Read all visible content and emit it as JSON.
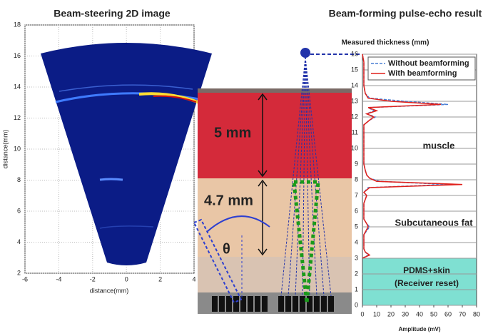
{
  "chart_data": [
    {
      "type": "sector-image",
      "title": "Beam-steering 2D image",
      "x_label": "distance(mm)",
      "y_label": "distance(mm)",
      "xlim": [
        -6,
        4
      ],
      "xticks": [
        -6,
        -4,
        -2,
        0,
        2,
        4
      ],
      "ylim": [
        2,
        18
      ],
      "yticks": [
        2,
        4,
        6,
        8,
        10,
        12,
        14,
        16,
        18
      ],
      "grid": true
    },
    {
      "type": "line",
      "orientation": "horizontal",
      "title": "Beam-forming pulse-echo result",
      "y_label": "Measured thickness (mm)",
      "x_label": "Amplitude (mV)",
      "y": [
        3,
        3.2,
        3.4,
        3.6,
        4,
        4.5,
        5,
        5.2,
        5.5,
        6,
        6.5,
        7,
        7.2,
        7.5,
        7.7,
        7.9,
        8.1,
        8.3,
        8.6,
        9,
        9.5,
        10,
        10.5,
        11,
        11.5,
        11.8,
        12,
        12.2,
        12.4,
        12.6,
        12.8,
        13,
        13.2,
        13.5,
        14,
        14.5,
        15,
        15.5,
        16
      ],
      "series": [
        {
          "name": "Without beamforming",
          "color": "#4a7fd4",
          "dash": true,
          "values": [
            0,
            4,
            2,
            1,
            1,
            1,
            5,
            3,
            1,
            1,
            1,
            3,
            1,
            4,
            60,
            12,
            5,
            3,
            2,
            1,
            1,
            1,
            1,
            1,
            1,
            5,
            9,
            3,
            8,
            4,
            60,
            30,
            5,
            2,
            1,
            1,
            1,
            1,
            0
          ]
        },
        {
          "name": "With beamforming",
          "color": "#e0201b",
          "dash": false,
          "values": [
            0,
            5,
            2,
            1,
            1,
            1,
            4,
            3,
            1,
            1,
            1,
            3,
            1,
            5,
            70,
            10,
            5,
            3,
            2,
            1,
            1,
            1,
            1,
            1,
            1,
            5,
            8,
            3,
            10,
            4,
            55,
            20,
            4,
            2,
            1,
            1,
            1,
            1,
            0
          ]
        }
      ],
      "xlim": [
        0,
        80
      ],
      "xticks": [
        0,
        10,
        20,
        30,
        40,
        50,
        60,
        70,
        80
      ],
      "ylim": [
        0,
        16
      ],
      "yticks": [
        0,
        1,
        2,
        3,
        4,
        5,
        6,
        7,
        8,
        9,
        10,
        11,
        12,
        13,
        14,
        15,
        16
      ],
      "grid": true,
      "legend": "upper right",
      "annotations": [
        "muscle",
        "Subcutaneous fat",
        "PDMS+skin",
        "(Receiver reset)"
      ]
    }
  ],
  "photo": {
    "labels": [
      "5 mm",
      "4.7 mm",
      "θ"
    ]
  }
}
